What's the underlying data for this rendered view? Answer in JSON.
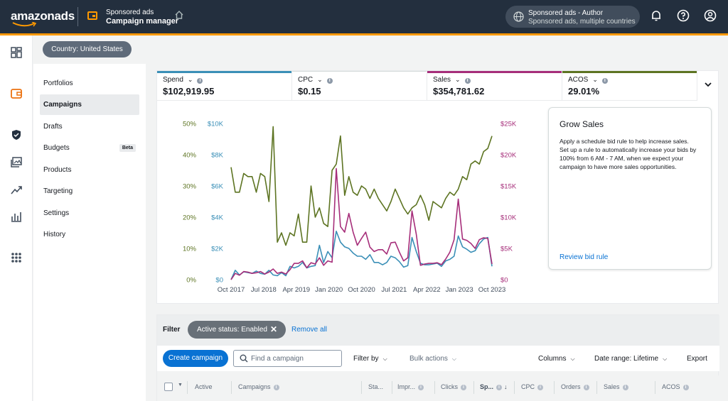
{
  "app": {
    "logo": "amazonads",
    "product_sub": "Sponsored ads",
    "product_main": "Campaign manager",
    "account_name": "Sponsored ads - Author",
    "account_sub": "Sponsored ads, multiple countries",
    "accent_color": "#ff9900",
    "topbar_color": "#232f3e"
  },
  "country": "Country: United States",
  "nav": {
    "items": [
      {
        "label": "Portfolios"
      },
      {
        "label": "Campaigns",
        "active": true
      },
      {
        "label": "Drafts"
      },
      {
        "label": "Budgets",
        "badge": "Beta"
      },
      {
        "label": "Products"
      },
      {
        "label": "Targeting"
      },
      {
        "label": "Settings"
      },
      {
        "label": "History"
      }
    ]
  },
  "metrics": [
    {
      "label": "Spend",
      "value": "$102,919.95",
      "color": "#3a8fb7"
    },
    {
      "label": "CPC",
      "value": "$0.15",
      "color": "#d5dbdb"
    },
    {
      "label": "Sales",
      "value": "$354,781.62",
      "color": "#a62e7a"
    },
    {
      "label": "ACOS",
      "value": "29.01%",
      "color": "#5d7422"
    }
  ],
  "chart_data": {
    "type": "line",
    "x_ticks": [
      "Oct 2017",
      "Jul 2018",
      "Apr 2019",
      "Jan 2020",
      "Oct 2020",
      "Jul 2021",
      "Apr 2022",
      "Jan 2023",
      "Oct 2023"
    ],
    "y_left_acos": {
      "ticks": [
        "0%",
        "10%",
        "20%",
        "30%",
        "40%",
        "50%"
      ],
      "range": [
        0,
        50
      ],
      "color": "#5d7422"
    },
    "y_left_spend": {
      "ticks": [
        "$0",
        "$2K",
        "$4K",
        "$6K",
        "$8K",
        "$10K"
      ],
      "range": [
        0,
        10000
      ],
      "color": "#3a8fb7"
    },
    "y_right_sales": {
      "ticks": [
        "$0",
        "$5K",
        "$10K",
        "$15K",
        "$20K",
        "$25K"
      ],
      "range": [
        0,
        25000
      ],
      "color": "#a62e7a"
    },
    "series": [
      {
        "name": "ACOS",
        "axis": "acos",
        "color": "#5d7422",
        "values": [
          36,
          28,
          28,
          34,
          33,
          33,
          28,
          34,
          33,
          25,
          49,
          12,
          15,
          11,
          15,
          14,
          21,
          12,
          12,
          30,
          20,
          23,
          18,
          17,
          35,
          37,
          46,
          27,
          33,
          28,
          27,
          30,
          29,
          26,
          29,
          26,
          24,
          22,
          25,
          29,
          26,
          23,
          21,
          23,
          24,
          27,
          24,
          19,
          25,
          24,
          23,
          26,
          28,
          27,
          29,
          33,
          32,
          37,
          38,
          37,
          41,
          42,
          46
        ]
      },
      {
        "name": "Spend",
        "axis": "spend",
        "color": "#3a8fb7",
        "values": [
          0,
          600,
          300,
          500,
          450,
          400,
          550,
          400,
          350,
          600,
          300,
          250,
          450,
          250,
          850,
          750,
          850,
          1100,
          750,
          850,
          900,
          2200,
          1100,
          1800,
          1400,
          3100,
          2400,
          2100,
          2000,
          1700,
          1500,
          1500,
          1300,
          1600,
          1100,
          1100,
          950,
          1100,
          1500,
          1400,
          1150,
          800,
          900,
          2700,
          1800,
          1050,
          950,
          950,
          1000,
          1050,
          850,
          1200,
          1300,
          1500,
          2800,
          2100,
          1950,
          1750,
          1850,
          2300,
          2600,
          2700,
          850
        ]
      },
      {
        "name": "Sales",
        "axis": "sales",
        "color": "#a62e7a",
        "values": [
          0,
          1000,
          700,
          1300,
          1200,
          1000,
          1100,
          1300,
          900,
          1200,
          1700,
          1000,
          1200,
          900,
          1600,
          2600,
          2600,
          3000,
          1900,
          2700,
          2500,
          3500,
          2300,
          3000,
          2800,
          17800,
          8500,
          7600,
          10600,
          7600,
          5500,
          6600,
          7600,
          5200,
          4500,
          4800,
          4800,
          4100,
          5900,
          6000,
          4400,
          3000,
          3500,
          11000,
          7300,
          2300,
          2500,
          2600,
          2600,
          2700,
          2400,
          3300,
          4400,
          6400,
          12900,
          6500,
          6300,
          5800,
          5000,
          6400,
          6700,
          6600,
          2500
        ]
      }
    ]
  },
  "grow": {
    "title": "Grow Sales",
    "body": "Apply a schedule bid rule to help increase sales. Set up a rule to automatically increase your bids by 100% from 6 AM - 7 AM, when we expect your campaign to have more sales opportunities.",
    "link": "Review bid rule"
  },
  "filter": {
    "label": "Filter",
    "chip": "Active status: Enabled",
    "remove_all": "Remove all"
  },
  "toolbar": {
    "create": "Create campaign",
    "search_placeholder": "Find a campaign",
    "filter_by": "Filter by",
    "bulk_actions": "Bulk actions",
    "columns": "Columns",
    "date_range": "Date range: Lifetime",
    "export": "Export"
  },
  "table": {
    "headers": [
      "Active",
      "Campaigns",
      "Sta...",
      "Impr...",
      "Clicks",
      "Sp...",
      "CPC",
      "Orders",
      "Sales",
      "ACOS"
    ]
  }
}
